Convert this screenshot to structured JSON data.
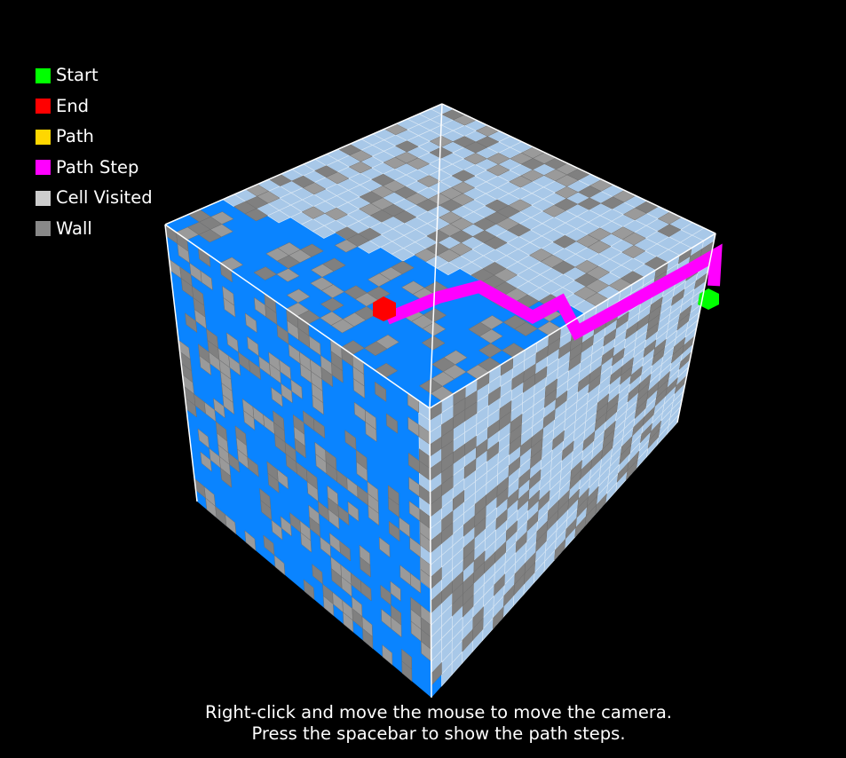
{
  "legend": {
    "items": [
      {
        "label": "Start",
        "color": "#00ff00"
      },
      {
        "label": "End",
        "color": "#ff0000"
      },
      {
        "label": "Path",
        "color": "#ffd700"
      },
      {
        "label": "Path Step",
        "color": "#ff00ff"
      },
      {
        "label": "Cell Visited",
        "color": "#cccccc"
      },
      {
        "label": "Wall",
        "color": "#888888"
      }
    ]
  },
  "instructions": {
    "line1": "Right-click and move the mouse to move the camera.",
    "line2": "Press the spacebar to show the path steps."
  },
  "colors": {
    "background": "#000000",
    "unvisited_face": "#0a84ff",
    "visited_face": "#a8c8e8",
    "wall": "#808080",
    "wall_light": "#9a9a9a",
    "path_step": "#ff00ff",
    "start": "#00ff00",
    "end": "#ff0000",
    "edge": "#ffffff"
  }
}
